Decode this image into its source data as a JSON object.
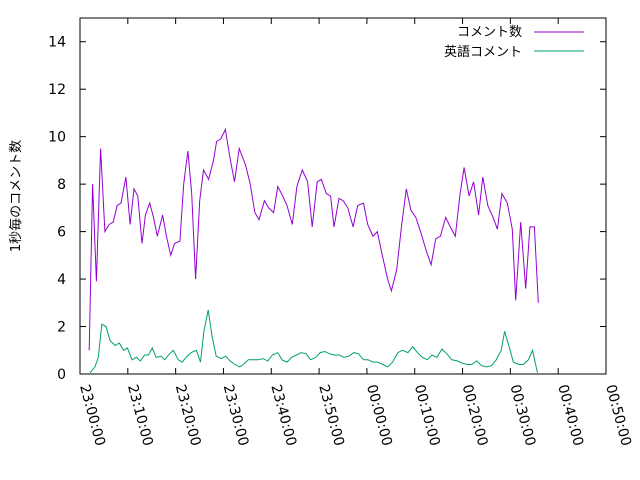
{
  "chart_data": {
    "type": "line",
    "title": "",
    "xlabel": "",
    "ylabel": "1秒毎のコメント数",
    "ylim": [
      0,
      15
    ],
    "y_ticks": [
      0,
      2,
      4,
      6,
      8,
      10,
      12,
      14
    ],
    "y_tick_labels": [
      "0",
      "2",
      "4",
      "6",
      "8",
      "10",
      "12",
      "14"
    ],
    "x_range": [
      "23:00:00",
      "00:50:00"
    ],
    "x_ticks": [
      "23:00:00",
      "23:10:00",
      "23:20:00",
      "23:30:00",
      "23:40:00",
      "23:50:00",
      "00:00:00",
      "00:10:00",
      "00:20:00",
      "00:30:00",
      "00:40:00",
      "00:50:00"
    ],
    "grid": false,
    "legend_position": "top-right",
    "series": [
      {
        "name": "コメント数",
        "color": "#9400d3",
        "points": [
          [
            "23:01:55",
            1.0
          ],
          [
            "23:02:38",
            8.0
          ],
          [
            "23:03:26",
            3.9
          ],
          [
            "23:04:19",
            9.5
          ],
          [
            "23:05:12",
            6.0
          ],
          [
            "23:06:05",
            6.3
          ],
          [
            "23:06:58",
            6.4
          ],
          [
            "23:07:46",
            7.1
          ],
          [
            "23:08:34",
            7.2
          ],
          [
            "23:09:36",
            8.3
          ],
          [
            "23:10:29",
            6.3
          ],
          [
            "23:11:17",
            7.8
          ],
          [
            "23:12:05",
            7.5
          ],
          [
            "23:12:58",
            5.5
          ],
          [
            "23:13:41",
            6.7
          ],
          [
            "23:14:34",
            7.2
          ],
          [
            "23:15:22",
            6.6
          ],
          [
            "23:16:10",
            5.8
          ],
          [
            "23:17:17",
            6.7
          ],
          [
            "23:18:05",
            5.8
          ],
          [
            "23:18:58",
            5.0
          ],
          [
            "23:19:46",
            5.5
          ],
          [
            "23:20:53",
            5.6
          ],
          [
            "23:21:41",
            8.0
          ],
          [
            "23:22:34",
            9.4
          ],
          [
            "23:23:22",
            7.6
          ],
          [
            "23:24:10",
            4.0
          ],
          [
            "23:25:02",
            7.3
          ],
          [
            "23:25:50",
            8.6
          ],
          [
            "23:26:53",
            8.2
          ],
          [
            "23:27:55",
            9.0
          ],
          [
            "23:28:34",
            9.8
          ],
          [
            "23:29:26",
            9.9
          ],
          [
            "23:30:24",
            10.3
          ],
          [
            "23:31:17",
            9.2
          ],
          [
            "23:32:19",
            8.1
          ],
          [
            "23:33:17",
            9.5
          ],
          [
            "23:34:38",
            8.8
          ],
          [
            "23:35:36",
            8.0
          ],
          [
            "23:36:34",
            6.8
          ],
          [
            "23:37:26",
            6.5
          ],
          [
            "23:38:34",
            7.3
          ],
          [
            "23:39:26",
            7.0
          ],
          [
            "23:40:29",
            6.8
          ],
          [
            "23:41:22",
            7.9
          ],
          [
            "23:42:24",
            7.5
          ],
          [
            "23:43:17",
            7.1
          ],
          [
            "23:44:24",
            6.3
          ],
          [
            "23:45:22",
            7.9
          ],
          [
            "23:46:29",
            8.6
          ],
          [
            "23:47:36",
            8.1
          ],
          [
            "23:48:34",
            6.2
          ],
          [
            "23:49:36",
            8.1
          ],
          [
            "23:50:29",
            8.2
          ],
          [
            "23:51:31",
            7.6
          ],
          [
            "23:52:24",
            7.5
          ],
          [
            "23:53:07",
            6.2
          ],
          [
            "23:54:10",
            7.4
          ],
          [
            "23:55:02",
            7.3
          ],
          [
            "23:56:00",
            7.0
          ],
          [
            "23:57:07",
            6.2
          ],
          [
            "23:58:05",
            7.1
          ],
          [
            "23:59:17",
            7.2
          ],
          [
            "00:00:10",
            6.3
          ],
          [
            "00:01:17",
            5.8
          ],
          [
            "00:02:10",
            6.0
          ],
          [
            "00:03:07",
            5.1
          ],
          [
            "00:04:19",
            4.0
          ],
          [
            "00:05:07",
            3.5
          ],
          [
            "00:06:14",
            4.4
          ],
          [
            "00:07:17",
            6.3
          ],
          [
            "00:08:14",
            7.8
          ],
          [
            "00:09:12",
            6.9
          ],
          [
            "00:10:14",
            6.6
          ],
          [
            "00:11:22",
            5.9
          ],
          [
            "00:12:24",
            5.2
          ],
          [
            "00:13:26",
            4.6
          ],
          [
            "00:14:24",
            5.7
          ],
          [
            "00:15:22",
            5.8
          ],
          [
            "00:16:29",
            6.6
          ],
          [
            "00:17:26",
            6.2
          ],
          [
            "00:18:29",
            5.8
          ],
          [
            "00:19:26",
            7.5
          ],
          [
            "00:20:19",
            8.7
          ],
          [
            "00:21:22",
            7.5
          ],
          [
            "00:22:19",
            8.1
          ],
          [
            "00:23:22",
            6.7
          ],
          [
            "00:24:14",
            8.3
          ],
          [
            "00:25:17",
            7.1
          ],
          [
            "00:26:24",
            6.6
          ],
          [
            "00:27:17",
            6.1
          ],
          [
            "00:28:14",
            7.6
          ],
          [
            "00:29:22",
            7.2
          ],
          [
            "00:30:24",
            6.1
          ],
          [
            "00:31:07",
            3.1
          ],
          [
            "00:32:10",
            6.4
          ],
          [
            "00:33:12",
            3.6
          ],
          [
            "00:34:05",
            6.2
          ],
          [
            "00:35:02",
            6.2
          ],
          [
            "00:35:50",
            3.0
          ]
        ]
      },
      {
        "name": "英語コメント",
        "color": "#009e73",
        "points": [
          [
            "23:02:05",
            0.05
          ],
          [
            "23:03:07",
            0.3
          ],
          [
            "23:03:50",
            0.7
          ],
          [
            "23:04:34",
            2.1
          ],
          [
            "23:05:26",
            2.0
          ],
          [
            "23:06:19",
            1.4
          ],
          [
            "23:07:22",
            1.2
          ],
          [
            "23:08:14",
            1.3
          ],
          [
            "23:09:07",
            1.0
          ],
          [
            "23:09:55",
            1.1
          ],
          [
            "23:10:53",
            0.6
          ],
          [
            "23:11:46",
            0.7
          ],
          [
            "23:12:38",
            0.55
          ],
          [
            "23:13:31",
            0.8
          ],
          [
            "23:14:19",
            0.8
          ],
          [
            "23:15:07",
            1.1
          ],
          [
            "23:15:55",
            0.7
          ],
          [
            "23:16:58",
            0.75
          ],
          [
            "23:17:41",
            0.6
          ],
          [
            "23:18:43",
            0.85
          ],
          [
            "23:19:31",
            1.0
          ],
          [
            "23:20:34",
            0.6
          ],
          [
            "23:21:22",
            0.5
          ],
          [
            "23:22:24",
            0.75
          ],
          [
            "23:23:17",
            0.9
          ],
          [
            "23:24:19",
            1.0
          ],
          [
            "23:25:12",
            0.5
          ],
          [
            "23:25:55",
            1.8
          ],
          [
            "23:26:48",
            2.7
          ],
          [
            "23:27:36",
            1.6
          ],
          [
            "23:28:29",
            0.75
          ],
          [
            "23:29:31",
            0.65
          ],
          [
            "23:30:29",
            0.75
          ],
          [
            "23:31:22",
            0.55
          ],
          [
            "23:32:24",
            0.4
          ],
          [
            "23:33:22",
            0.3
          ],
          [
            "23:34:10",
            0.4
          ],
          [
            "23:35:12",
            0.6
          ],
          [
            "23:36:19",
            0.6
          ],
          [
            "23:37:12",
            0.6
          ],
          [
            "23:38:14",
            0.65
          ],
          [
            "23:39:17",
            0.55
          ],
          [
            "23:40:14",
            0.8
          ],
          [
            "23:41:22",
            0.9
          ],
          [
            "23:42:14",
            0.6
          ],
          [
            "23:43:17",
            0.5
          ],
          [
            "23:44:14",
            0.7
          ],
          [
            "23:45:17",
            0.8
          ],
          [
            "23:46:14",
            0.9
          ],
          [
            "23:47:17",
            0.85
          ],
          [
            "23:48:14",
            0.6
          ],
          [
            "23:49:17",
            0.7
          ],
          [
            "23:50:14",
            0.9
          ],
          [
            "23:51:12",
            0.95
          ],
          [
            "23:52:14",
            0.85
          ],
          [
            "23:53:12",
            0.8
          ],
          [
            "23:54:14",
            0.8
          ],
          [
            "23:55:12",
            0.7
          ],
          [
            "23:56:14",
            0.75
          ],
          [
            "23:57:17",
            0.9
          ],
          [
            "23:58:14",
            0.85
          ],
          [
            "23:59:17",
            0.6
          ],
          [
            "00:00:14",
            0.6
          ],
          [
            "00:01:17",
            0.5
          ],
          [
            "00:02:14",
            0.5
          ],
          [
            "00:03:22",
            0.4
          ],
          [
            "00:04:19",
            0.3
          ],
          [
            "00:05:22",
            0.5
          ],
          [
            "00:06:29",
            0.9
          ],
          [
            "00:07:26",
            1.0
          ],
          [
            "00:08:34",
            0.9
          ],
          [
            "00:09:36",
            1.15
          ],
          [
            "00:10:34",
            0.9
          ],
          [
            "00:11:36",
            0.7
          ],
          [
            "00:12:38",
            0.6
          ],
          [
            "00:13:36",
            0.8
          ],
          [
            "00:14:38",
            0.7
          ],
          [
            "00:15:41",
            1.05
          ],
          [
            "00:16:43",
            0.85
          ],
          [
            "00:17:46",
            0.6
          ],
          [
            "00:18:53",
            0.55
          ],
          [
            "00:20:00",
            0.45
          ],
          [
            "00:21:02",
            0.4
          ],
          [
            "00:21:55",
            0.4
          ],
          [
            "00:22:58",
            0.55
          ],
          [
            "00:24:00",
            0.35
          ],
          [
            "00:25:02",
            0.3
          ],
          [
            "00:26:05",
            0.35
          ],
          [
            "00:27:02",
            0.6
          ],
          [
            "00:28:05",
            1.0
          ],
          [
            "00:28:48",
            1.8
          ],
          [
            "00:29:41",
            1.2
          ],
          [
            "00:30:38",
            0.5
          ],
          [
            "00:31:46",
            0.4
          ],
          [
            "00:32:43",
            0.4
          ],
          [
            "00:33:46",
            0.6
          ],
          [
            "00:34:38",
            1.0
          ],
          [
            "00:35:41",
            0.05
          ]
        ]
      }
    ]
  }
}
